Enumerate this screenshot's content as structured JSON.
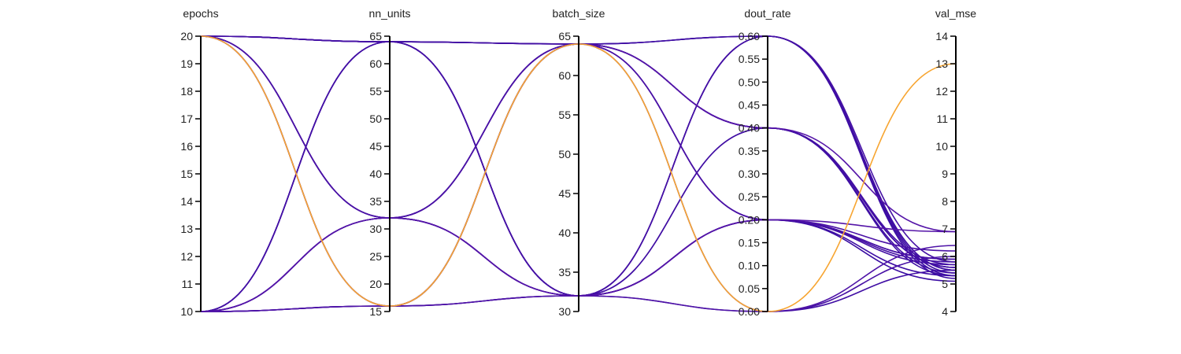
{
  "chart_data": {
    "type": "parallel_coordinates",
    "dimensions": [
      {
        "name": "epochs",
        "range": [
          10,
          20
        ],
        "ticks": [
          "10",
          "11",
          "12",
          "13",
          "14",
          "15",
          "16",
          "17",
          "18",
          "19",
          "20"
        ]
      },
      {
        "name": "nn_units",
        "range": [
          15,
          65
        ],
        "ticks": [
          "15",
          "20",
          "25",
          "30",
          "35",
          "40",
          "45",
          "50",
          "55",
          "60",
          "65"
        ]
      },
      {
        "name": "batch_size",
        "range": [
          30,
          65
        ],
        "ticks": [
          "30",
          "35",
          "40",
          "45",
          "50",
          "55",
          "60",
          "65"
        ]
      },
      {
        "name": "dout_rate",
        "range": [
          0,
          0.6
        ],
        "ticks": [
          "0.00",
          "0.05",
          "0.10",
          "0.15",
          "0.20",
          "0.25",
          "0.30",
          "0.35",
          "0.40",
          "0.45",
          "0.50",
          "0.55",
          "0.60"
        ]
      },
      {
        "name": "val_mse",
        "range": [
          4,
          14
        ],
        "ticks": [
          "4",
          "5",
          "6",
          "7",
          "8",
          "9",
          "10",
          "11",
          "12",
          "13",
          "14"
        ]
      }
    ],
    "color_scale": {
      "min_color": "#3a0ca3",
      "mid_color": "#9d2db5",
      "max_color": "#f7a531",
      "field": "val_mse"
    },
    "records": [
      [
        20,
        64,
        64,
        0.6,
        5.5
      ],
      [
        20,
        64,
        64,
        0.6,
        5.2
      ],
      [
        20,
        64,
        64,
        0.4,
        5.6
      ],
      [
        20,
        64,
        32,
        0.6,
        5.8
      ],
      [
        20,
        64,
        32,
        0.4,
        5.4
      ],
      [
        20,
        64,
        32,
        0.2,
        5.1
      ],
      [
        20,
        32,
        64,
        0.2,
        6.2
      ],
      [
        20,
        32,
        64,
        0.4,
        5.7
      ],
      [
        20,
        32,
        32,
        0.6,
        5.3
      ],
      [
        20,
        32,
        32,
        0.2,
        5.9
      ],
      [
        20,
        16,
        64,
        0.4,
        6.9
      ],
      [
        20,
        16,
        64,
        0.0,
        13.0
      ],
      [
        20,
        16,
        32,
        0.0,
        6.0
      ],
      [
        10,
        64,
        64,
        0.4,
        5.6
      ],
      [
        10,
        64,
        64,
        0.2,
        5.3
      ],
      [
        10,
        64,
        32,
        0.6,
        5.4
      ],
      [
        10,
        64,
        32,
        0.2,
        5.7
      ],
      [
        10,
        32,
        64,
        0.6,
        5.5
      ],
      [
        10,
        32,
        64,
        0.2,
        5.8
      ],
      [
        10,
        32,
        32,
        0.4,
        5.6
      ],
      [
        10,
        32,
        32,
        0.2,
        6.9
      ],
      [
        10,
        16,
        64,
        0.4,
        5.3
      ],
      [
        10,
        16,
        32,
        0.0,
        6.4
      ],
      [
        10,
        16,
        32,
        0.2,
        5.9
      ],
      [
        10,
        16,
        64,
        0.0,
        5.5
      ]
    ]
  }
}
